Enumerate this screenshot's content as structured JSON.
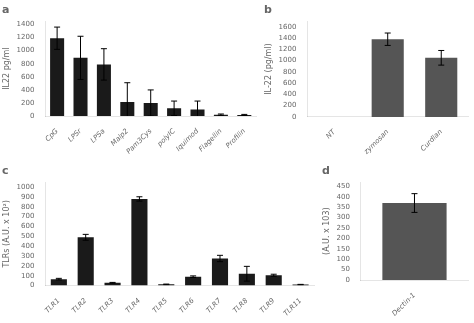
{
  "chart_data": [
    {
      "type": "bar",
      "title": "a",
      "categories": [
        "CpG",
        "LPSr",
        "LPSa",
        "Malp2",
        "Pam3Cys",
        "polyIC",
        "Iquimod",
        "Flagellin",
        "Profilin"
      ],
      "values": [
        1190,
        890,
        790,
        215,
        200,
        120,
        100,
        22,
        18
      ],
      "errors": [
        170,
        330,
        240,
        295,
        200,
        110,
        130,
        10,
        8
      ],
      "ylabel": "IL22 pg/ml",
      "ylim": [
        0,
        1450
      ],
      "yticks": [
        0,
        200,
        400,
        600,
        800,
        1000,
        1200,
        1400
      ],
      "color": "#1a1a1a",
      "grid": false
    },
    {
      "type": "bar",
      "title": "b",
      "categories": [
        "NT",
        "zymosan",
        "Curdlan"
      ],
      "values": [
        0,
        1380,
        1050
      ],
      "errors": [
        0,
        110,
        130
      ],
      "ylabel": "IL-22 (pg/ml)",
      "ylim": [
        0,
        1700
      ],
      "yticks": [
        0,
        200,
        400,
        600,
        800,
        1000,
        1200,
        1400,
        1600
      ],
      "color": "#555555",
      "grid": false
    },
    {
      "type": "bar",
      "title": "c",
      "categories": [
        "TLR1",
        "TLR2",
        "TLR3",
        "TLR4",
        "TLR5",
        "TLR6",
        "TLR7",
        "TLR8",
        "TLR9",
        "TLR11"
      ],
      "values": [
        65,
        490,
        28,
        880,
        12,
        90,
        275,
        120,
        105,
        10
      ],
      "errors": [
        8,
        30,
        4,
        22,
        3,
        8,
        32,
        75,
        10,
        2
      ],
      "ylabel": "TLRs (A.U. x 10²)",
      "ylim": [
        0,
        1050
      ],
      "yticks": [
        0,
        100,
        200,
        300,
        400,
        500,
        600,
        700,
        800,
        900,
        1000
      ],
      "color": "#1a1a1a",
      "grid": false
    },
    {
      "type": "bar",
      "title": "d",
      "categories": [
        "Dectin-1"
      ],
      "values": [
        370
      ],
      "errors": [
        45
      ],
      "ylabel": "(A.U. x 103)",
      "ylim": [
        0,
        470
      ],
      "yticks": [
        0,
        50,
        100,
        150,
        200,
        250,
        300,
        350,
        400,
        450
      ],
      "color": "#555555",
      "grid": false
    }
  ]
}
